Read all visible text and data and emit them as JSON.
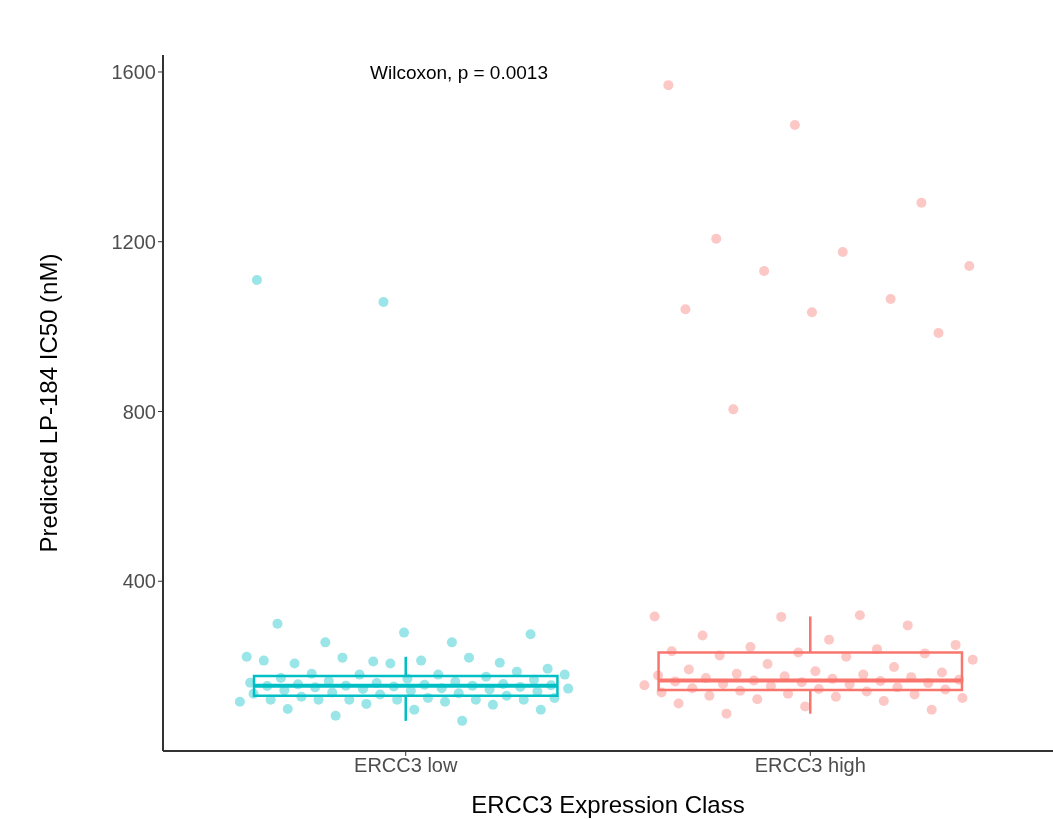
{
  "chart_data": {
    "type": "box",
    "xlabel": "ERCC3 Expression Class",
    "ylabel": "Predicted LP-184 IC50 (nM)",
    "annotations": [
      "Wilcoxon, p = 0.0013"
    ],
    "categories": [
      "ERCC3 low",
      "ERCC3 high"
    ],
    "colors": [
      "#00bfc4",
      "#f8766d"
    ],
    "boxes": [
      {
        "low": 71,
        "q1": 130,
        "median": 154,
        "q3": 177,
        "high": 222
      },
      {
        "low": 88,
        "q1": 144,
        "median": 166,
        "q3": 232,
        "high": 317
      }
    ],
    "series": [
      {
        "type": "scatter",
        "color": "#00bfc4",
        "x": [
          "ERCC3 low",
          "ERCC3 low",
          "ERCC3 low",
          "ERCC3 low",
          "ERCC3 low",
          "ERCC3 low",
          "ERCC3 low",
          "ERCC3 low",
          "ERCC3 low",
          "ERCC3 low",
          "ERCC3 low",
          "ERCC3 low",
          "ERCC3 low",
          "ERCC3 low",
          "ERCC3 low",
          "ERCC3 low",
          "ERCC3 low",
          "ERCC3 low",
          "ERCC3 low",
          "ERCC3 low",
          "ERCC3 low",
          "ERCC3 low",
          "ERCC3 low",
          "ERCC3 low",
          "ERCC3 low",
          "ERCC3 low",
          "ERCC3 low",
          "ERCC3 low",
          "ERCC3 low",
          "ERCC3 low",
          "ERCC3 low",
          "ERCC3 low",
          "ERCC3 low",
          "ERCC3 low",
          "ERCC3 low",
          "ERCC3 low",
          "ERCC3 low",
          "ERCC3 low",
          "ERCC3 low",
          "ERCC3 low",
          "ERCC3 low",
          "ERCC3 low",
          "ERCC3 low",
          "ERCC3 low",
          "ERCC3 low",
          "ERCC3 low",
          "ERCC3 low",
          "ERCC3 low",
          "ERCC3 low",
          "ERCC3 low",
          "ERCC3 low",
          "ERCC3 low",
          "ERCC3 low",
          "ERCC3 low",
          "ERCC3 low",
          "ERCC3 low",
          "ERCC3 low",
          "ERCC3 low",
          "ERCC3 low",
          "ERCC3 low",
          "ERCC3 low",
          "ERCC3 low",
          "ERCC3 low",
          "ERCC3 low",
          "ERCC3 low",
          "ERCC3 low",
          "ERCC3 low",
          "ERCC3 low",
          "ERCC3 low",
          "ERCC3 low"
        ],
        "values": [
          300,
          279,
          275,
          256,
          256,
          222,
          211,
          208,
          206,
          213,
          194,
          220,
          220,
          213,
          206,
          187,
          182,
          180,
          180,
          180,
          175,
          172,
          170,
          168,
          165,
          163,
          161,
          160,
          158,
          157,
          156,
          155,
          154,
          154,
          153,
          152,
          151,
          150,
          148,
          147,
          146,
          145,
          143,
          142,
          140,
          138,
          136,
          135,
          133,
          130,
          128,
          125,
          125,
          121,
          121,
          121,
          121,
          121,
          121,
          116,
          116,
          111,
          109,
          99,
          97,
          97,
          83,
          71,
          1110,
          1058
        ]
      },
      {
        "type": "scatter",
        "color": "#f8766d",
        "x": [
          "ERCC3 high",
          "ERCC3 high",
          "ERCC3 high",
          "ERCC3 high",
          "ERCC3 high",
          "ERCC3 high",
          "ERCC3 high",
          "ERCC3 high",
          "ERCC3 high",
          "ERCC3 high",
          "ERCC3 high",
          "ERCC3 high",
          "ERCC3 high",
          "ERCC3 high",
          "ERCC3 high",
          "ERCC3 high",
          "ERCC3 high",
          "ERCC3 high",
          "ERCC3 high",
          "ERCC3 high",
          "ERCC3 high",
          "ERCC3 high",
          "ERCC3 high",
          "ERCC3 high",
          "ERCC3 high",
          "ERCC3 high",
          "ERCC3 high",
          "ERCC3 high",
          "ERCC3 high",
          "ERCC3 high",
          "ERCC3 high",
          "ERCC3 high",
          "ERCC3 high",
          "ERCC3 high",
          "ERCC3 high",
          "ERCC3 high",
          "ERCC3 high",
          "ERCC3 high",
          "ERCC3 high",
          "ERCC3 high",
          "ERCC3 high",
          "ERCC3 high",
          "ERCC3 high",
          "ERCC3 high",
          "ERCC3 high",
          "ERCC3 high",
          "ERCC3 high",
          "ERCC3 high",
          "ERCC3 high",
          "ERCC3 high",
          "ERCC3 high",
          "ERCC3 high",
          "ERCC3 high",
          "ERCC3 high",
          "ERCC3 high",
          "ERCC3 high",
          "ERCC3 high",
          "ERCC3 high",
          "ERCC3 high",
          "ERCC3 high",
          "ERCC3 high",
          "ERCC3 high",
          "ERCC3 high",
          "ERCC3 high",
          "ERCC3 high",
          "ERCC3 high",
          "ERCC3 high"
        ],
        "values": [
          1569,
          1475,
          1292,
          1207,
          1176,
          1143,
          1131,
          1065,
          1041,
          1034,
          985,
          805,
          320,
          317,
          316,
          296,
          272,
          262,
          250,
          245,
          240,
          235,
          232,
          230,
          225,
          222,
          215,
          205,
          198,
          192,
          188,
          185,
          182,
          180,
          178,
          176,
          174,
          172,
          170,
          168,
          166,
          165,
          164,
          162,
          160,
          158,
          157,
          155,
          153,
          150,
          148,
          146,
          145,
          142,
          140,
          138,
          135,
          133,
          130,
          128,
          125,
          122,
          118,
          112,
          105,
          97,
          88
        ]
      }
    ],
    "ylim": [
      0,
      1640
    ],
    "yticks": [
      400,
      800,
      1200,
      1600
    ],
    "grid": false,
    "legend": false,
    "marker": "circle"
  }
}
